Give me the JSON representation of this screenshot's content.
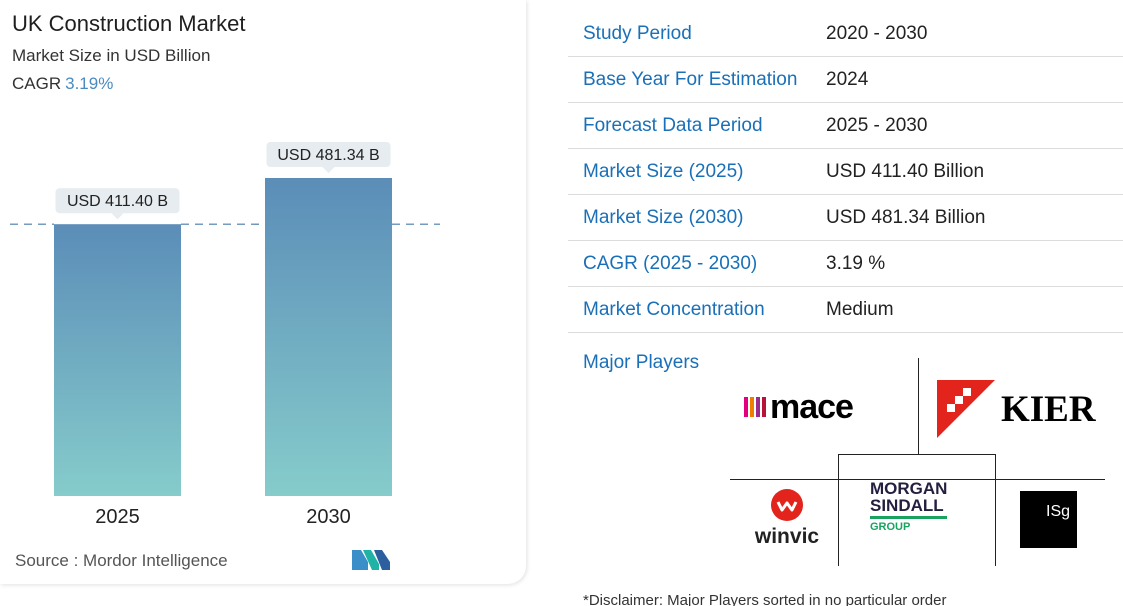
{
  "header": {
    "title": "UK Construction Market",
    "subtitle": "Market Size in USD Billion",
    "cagr_label": "CAGR",
    "cagr_value": "3.19%"
  },
  "chart_data": {
    "type": "bar",
    "categories": [
      "2025",
      "2030"
    ],
    "values": [
      411.4,
      481.34
    ],
    "data_labels": [
      "USD 411.40 B",
      "USD 481.34 B"
    ],
    "title": "UK Construction Market",
    "ylabel": "Market Size in USD Billion",
    "xlabel": "",
    "reference_line": "dashed line at 2025 value",
    "grid": false,
    "colors": {
      "bar_top": "#5b8db8",
      "bar_bottom": "#86cccb",
      "label_bg": "#e6ecef",
      "dash": "#4a7aa8"
    }
  },
  "footer": {
    "source": "Source :  Mordor Intelligence",
    "logo": "mordor-intelligence-logo"
  },
  "table": {
    "rows": [
      {
        "label": "Study Period",
        "value": "2020 - 2030"
      },
      {
        "label": "Base Year For Estimation",
        "value": "2024"
      },
      {
        "label": "Forecast Data Period",
        "value": "2025 - 2030"
      },
      {
        "label": "Market Size (2025)",
        "value": "USD 411.40 Billion"
      },
      {
        "label": "Market Size (2030)",
        "value": "USD 481.34 Billion"
      },
      {
        "label": "CAGR (2025 - 2030)",
        "value": "3.19 %"
      },
      {
        "label": "Market Concentration",
        "value": "Medium"
      }
    ]
  },
  "players": {
    "heading": "Major Players",
    "mace": "mace",
    "kier": "KIER",
    "winvic": "winvic",
    "morgan_line1": "MORGAN",
    "morgan_line2": "SINDALL",
    "morgan_line3": "GROUP",
    "isg": "ISg"
  },
  "disclaimer": "*Disclaimer: Major Players sorted in no particular order",
  "colors": {
    "accent_blue": "#1a70b8",
    "cagr_blue": "#4a8bbf",
    "kier_red": "#e2241d",
    "morgan_green": "#19a35f",
    "mace_bars": [
      "#e4007c",
      "#ef7d00",
      "#9b2a8a",
      "#b8123b"
    ]
  }
}
